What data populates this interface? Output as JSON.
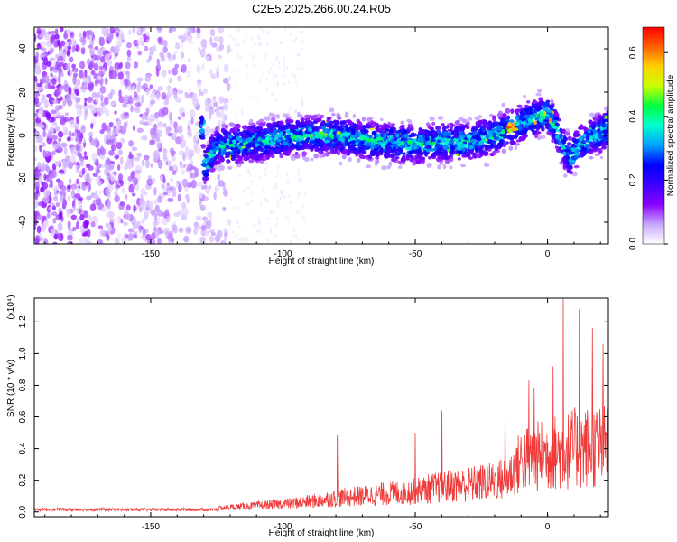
{
  "chart_data": [
    {
      "type": "heatmap",
      "title": "C2E5.2025.266.00.24.R05",
      "xlabel": "Height of straight line (km)",
      "ylabel": "Frequency (Hz)",
      "xlim": [
        -194,
        23
      ],
      "ylim": [
        -50,
        50
      ],
      "xticks": [
        "-150",
        "-100",
        "-50",
        "0"
      ],
      "yticks": [
        "-40",
        "-20",
        "0",
        "20",
        "40"
      ],
      "grid": false,
      "colorbar": {
        "label": "Normalized spectral amplitude",
        "range": [
          0.0,
          0.68
        ],
        "ticks": [
          "0.0",
          "0.2",
          "0.4",
          "0.6"
        ],
        "colors": [
          "#ffffff",
          "#c9a6ff",
          "#8a00ff",
          "#3c00ff",
          "#0000ff",
          "#00a0ff",
          "#00ffd0",
          "#00ff40",
          "#c8ff00",
          "#ffd000",
          "#ff6000",
          "#ff0000"
        ]
      },
      "trace": {
        "noise_region_end_km": -120,
        "center_freq_hz": [
          [
            -130,
            -15
          ],
          [
            -125,
            -5
          ],
          [
            -110,
            -3
          ],
          [
            -100,
            -1
          ],
          [
            -90,
            0
          ],
          [
            -80,
            0
          ],
          [
            -70,
            -2
          ],
          [
            -60,
            -3
          ],
          [
            -50,
            -4
          ],
          [
            -40,
            -3
          ],
          [
            -30,
            -3
          ],
          [
            -20,
            0
          ],
          [
            -15,
            3
          ],
          [
            -10,
            6
          ],
          [
            -5,
            8
          ],
          [
            0,
            10
          ],
          [
            3,
            4
          ],
          [
            6,
            -6
          ],
          [
            9,
            -10
          ],
          [
            12,
            -4
          ],
          [
            16,
            -1
          ],
          [
            23,
            3
          ]
        ],
        "peak_amplitude_km": [
          -15,
          -12
        ]
      }
    },
    {
      "type": "line",
      "xlabel": "Height of straight line (km)",
      "ylabel": "SNR (10 * v/v)",
      "scale_label": "(x10⁴)",
      "xlim": [
        -194,
        23
      ],
      "ylim": [
        -0.03,
        1.35
      ],
      "xticks": [
        "-150",
        "-100",
        "-50",
        "0"
      ],
      "yticks": [
        "0.0",
        "0.2",
        "0.4",
        "0.6",
        "0.8",
        "1.0",
        "1.2"
      ],
      "color": "#f03a3a",
      "envelope": [
        [
          -194,
          0.01
        ],
        [
          -130,
          0.02
        ],
        [
          -120,
          0.04
        ],
        [
          -100,
          0.07
        ],
        [
          -90,
          0.09
        ],
        [
          -80,
          0.12
        ],
        [
          -70,
          0.14
        ],
        [
          -60,
          0.16
        ],
        [
          -50,
          0.18
        ],
        [
          -40,
          0.22
        ],
        [
          -30,
          0.24
        ],
        [
          -20,
          0.27
        ],
        [
          -15,
          0.3
        ],
        [
          -12,
          0.38
        ],
        [
          -10,
          0.45
        ],
        [
          0,
          0.5
        ],
        [
          10,
          0.55
        ],
        [
          23,
          0.58
        ]
      ],
      "spikes": [
        [
          -79.5,
          0.49
        ],
        [
          -50,
          0.5
        ],
        [
          -40,
          0.64
        ],
        [
          -16,
          0.69
        ],
        [
          -7,
          0.83
        ],
        [
          6,
          1.36
        ],
        [
          12,
          1.28
        ],
        [
          17,
          1.16
        ],
        [
          21,
          1.06
        ],
        [
          -5,
          0.78
        ],
        [
          2,
          0.92
        ]
      ]
    }
  ]
}
